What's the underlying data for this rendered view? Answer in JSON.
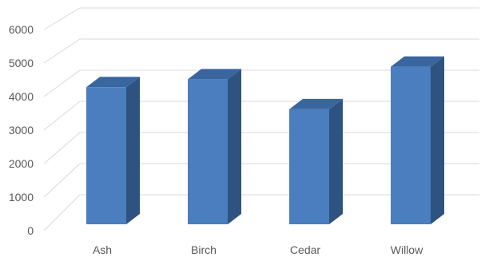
{
  "chart_data": {
    "type": "bar",
    "style": "3d-column",
    "categories": [
      "Ash",
      "Birch",
      "Cedar",
      "Willow"
    ],
    "values": [
      4350,
      4600,
      3650,
      5000
    ],
    "title": "",
    "xlabel": "",
    "ylabel": "",
    "ylim": [
      0,
      6000
    ],
    "yticks": [
      0,
      1000,
      2000,
      3000,
      4000,
      5000,
      6000
    ],
    "grid": true,
    "legend": "none",
    "colors": {
      "front": "#4a7ebf",
      "side": "#2f5380",
      "top": "#3a66a0",
      "grid": "#d9d9d9",
      "text": "#595959"
    }
  }
}
